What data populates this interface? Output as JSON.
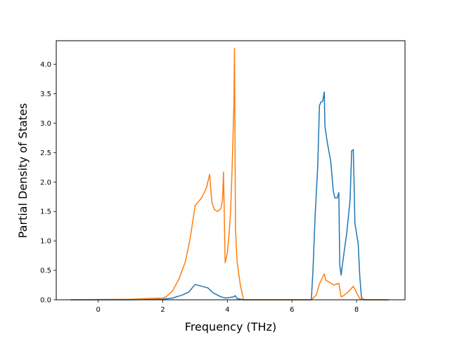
{
  "chart_data": {
    "type": "line",
    "xlabel": "Frequency (THz)",
    "ylabel": "Partial Density of States",
    "xlim": [
      -1.3,
      9.5
    ],
    "ylim": [
      0.0,
      4.4
    ],
    "xticks": [
      "0",
      "2",
      "4",
      "6",
      "8"
    ],
    "xtick_values": [
      0,
      2,
      4,
      6,
      8
    ],
    "yticks": [
      "0.0",
      "0.5",
      "1.0",
      "1.5",
      "2.0",
      "2.5",
      "3.0",
      "3.5",
      "4.0"
    ],
    "ytick_values": [
      0.0,
      0.5,
      1.0,
      1.5,
      2.0,
      2.5,
      3.0,
      3.5,
      4.0
    ],
    "grid": false,
    "legend": "none",
    "series": [
      {
        "color": "#1f77b4",
        "points": [
          [
            -0.85,
            0.0
          ],
          [
            1.0,
            0.0
          ],
          [
            2.0,
            0.01
          ],
          [
            2.3,
            0.03
          ],
          [
            2.6,
            0.08
          ],
          [
            2.8,
            0.13
          ],
          [
            3.0,
            0.26
          ],
          [
            3.2,
            0.23
          ],
          [
            3.4,
            0.2
          ],
          [
            3.55,
            0.12
          ],
          [
            3.8,
            0.05
          ],
          [
            3.95,
            0.03
          ],
          [
            4.2,
            0.05
          ],
          [
            4.24,
            0.07
          ],
          [
            4.3,
            0.02
          ],
          [
            4.5,
            0.0
          ],
          [
            6.6,
            0.0
          ],
          [
            6.65,
            0.5
          ],
          [
            6.72,
            1.45
          ],
          [
            6.8,
            2.3
          ],
          [
            6.85,
            3.3
          ],
          [
            6.9,
            3.36
          ],
          [
            6.95,
            3.37
          ],
          [
            7.0,
            3.53
          ],
          [
            7.02,
            2.95
          ],
          [
            7.1,
            2.65
          ],
          [
            7.2,
            2.35
          ],
          [
            7.28,
            1.85
          ],
          [
            7.33,
            1.73
          ],
          [
            7.4,
            1.73
          ],
          [
            7.45,
            1.82
          ],
          [
            7.48,
            0.6
          ],
          [
            7.52,
            0.42
          ],
          [
            7.6,
            0.75
          ],
          [
            7.7,
            1.15
          ],
          [
            7.8,
            1.7
          ],
          [
            7.85,
            2.53
          ],
          [
            7.9,
            2.55
          ],
          [
            7.95,
            1.3
          ],
          [
            8.05,
            0.95
          ],
          [
            8.1,
            0.4
          ],
          [
            8.15,
            0.05
          ],
          [
            8.2,
            0.0
          ],
          [
            9.0,
            0.0
          ]
        ]
      },
      {
        "color": "#ff7f0e",
        "points": [
          [
            -0.85,
            0.0
          ],
          [
            1.0,
            0.01
          ],
          [
            1.5,
            0.02
          ],
          [
            2.0,
            0.03
          ],
          [
            2.1,
            0.05
          ],
          [
            2.3,
            0.15
          ],
          [
            2.5,
            0.35
          ],
          [
            2.7,
            0.65
          ],
          [
            2.85,
            1.05
          ],
          [
            3.0,
            1.6
          ],
          [
            3.2,
            1.73
          ],
          [
            3.35,
            1.9
          ],
          [
            3.45,
            2.13
          ],
          [
            3.52,
            1.65
          ],
          [
            3.6,
            1.53
          ],
          [
            3.7,
            1.5
          ],
          [
            3.8,
            1.55
          ],
          [
            3.85,
            1.7
          ],
          [
            3.88,
            2.17
          ],
          [
            3.93,
            0.63
          ],
          [
            4.0,
            0.8
          ],
          [
            4.05,
            1.1
          ],
          [
            4.1,
            1.5
          ],
          [
            4.15,
            2.3
          ],
          [
            4.2,
            3.3
          ],
          [
            4.22,
            4.27
          ],
          [
            4.25,
            1.2
          ],
          [
            4.3,
            0.65
          ],
          [
            4.4,
            0.25
          ],
          [
            4.5,
            0.0
          ],
          [
            6.6,
            0.0
          ],
          [
            6.75,
            0.08
          ],
          [
            6.85,
            0.27
          ],
          [
            7.0,
            0.44
          ],
          [
            7.05,
            0.33
          ],
          [
            7.3,
            0.25
          ],
          [
            7.45,
            0.28
          ],
          [
            7.52,
            0.05
          ],
          [
            7.6,
            0.07
          ],
          [
            7.75,
            0.14
          ],
          [
            7.9,
            0.23
          ],
          [
            8.0,
            0.12
          ],
          [
            8.1,
            0.02
          ],
          [
            8.3,
            0.0
          ],
          [
            9.0,
            0.0
          ]
        ]
      }
    ]
  }
}
